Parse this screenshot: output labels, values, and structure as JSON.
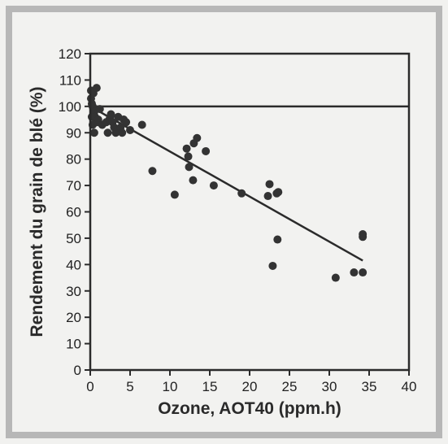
{
  "chart_data": {
    "type": "scatter",
    "title": "",
    "xlabel": "Ozone, AOT40 (ppm.h)",
    "ylabel": "Rendement du grain de blé (%)",
    "xlim": [
      0,
      40
    ],
    "ylim": [
      0,
      120
    ],
    "x_ticks": [
      0,
      5,
      10,
      15,
      20,
      25,
      30,
      35,
      40
    ],
    "y_ticks": [
      0,
      10,
      20,
      30,
      40,
      50,
      60,
      70,
      80,
      90,
      100,
      110,
      120
    ],
    "grid": false,
    "legend": "none",
    "colors": {
      "points": "#333333",
      "lines": "#2b2b2b",
      "frame": "#b7b7b7"
    },
    "reference_line": {
      "y": 100
    },
    "regression_line": {
      "x": [
        0,
        34.2
      ],
      "y": [
        100,
        41.5
      ]
    },
    "series": [
      {
        "x": [
          0.1,
          0.1,
          0.2,
          0.2,
          0.3,
          0.3,
          0.4,
          0.5,
          0.5,
          0.6,
          0.8,
          0.8,
          1.0,
          1.2,
          1.5,
          2.0,
          2.2,
          2.4,
          2.5,
          2.6,
          2.8,
          3.0,
          3.2,
          3.5,
          3.8,
          4.0,
          4.2,
          4.5,
          5.0,
          6.5,
          7.8,
          10.6,
          12.1,
          12.3,
          12.4,
          12.9,
          13.0,
          13.4,
          14.5,
          15.5,
          19.0,
          22.3,
          22.5,
          22.9,
          23.4,
          23.5,
          23.6,
          30.8,
          33.1,
          34.2,
          34.2,
          34.2
        ],
        "y": [
          106,
          103,
          101,
          96,
          93,
          100,
          105,
          98,
          90,
          96,
          107,
          94,
          95,
          99,
          93,
          94,
          90,
          95,
          96,
          97,
          94,
          92,
          90,
          96,
          92,
          90,
          95,
          94,
          91,
          93,
          75.5,
          66.5,
          84,
          81,
          77,
          72,
          86,
          88,
          83,
          70,
          67,
          66,
          70.5,
          39.5,
          67,
          49.5,
          67.5,
          35,
          37,
          51.5,
          50.5,
          37
        ]
      }
    ]
  }
}
